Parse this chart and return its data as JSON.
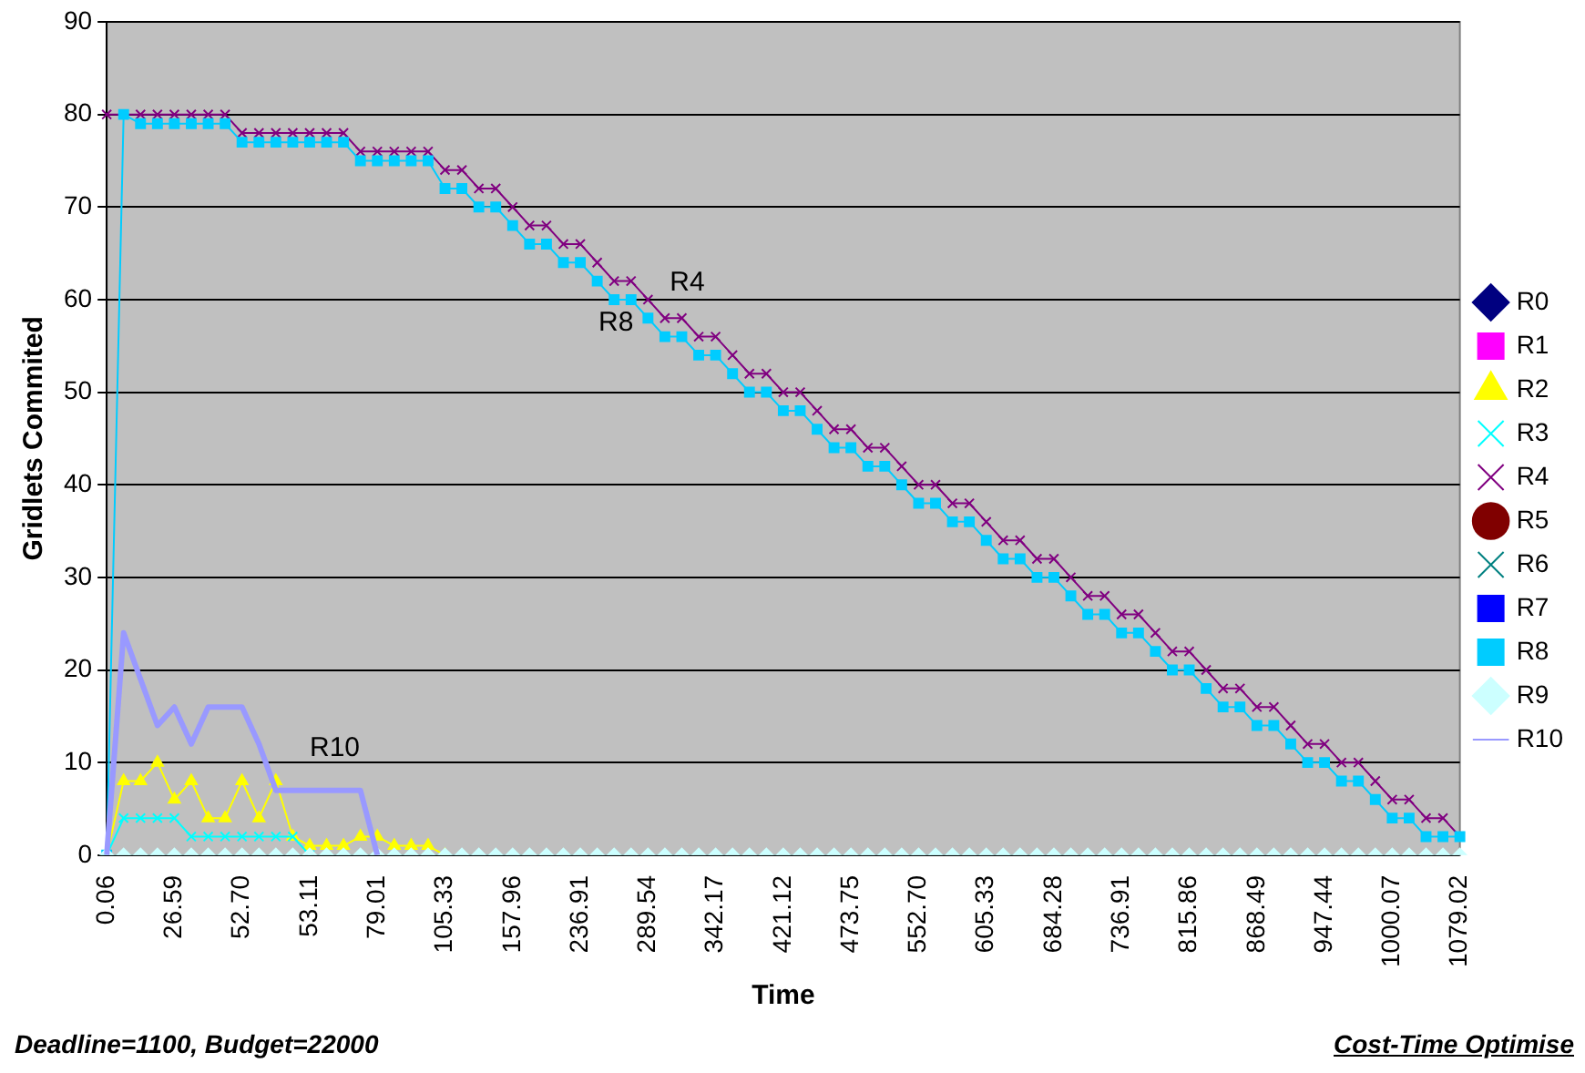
{
  "chart_data": {
    "type": "line",
    "xlabel": "Time",
    "ylabel": "Gridlets Commited",
    "categories": [
      "0.06",
      null,
      null,
      null,
      "26.59",
      null,
      null,
      null,
      "52.70",
      null,
      null,
      null,
      "53.11",
      null,
      null,
      null,
      "79.01",
      null,
      null,
      null,
      "105.33",
      null,
      null,
      null,
      "157.96",
      null,
      null,
      null,
      "236.91",
      null,
      null,
      null,
      "289.54",
      null,
      null,
      null,
      "342.17",
      null,
      null,
      null,
      "421.12",
      null,
      null,
      null,
      "473.75",
      null,
      null,
      null,
      "552.70",
      null,
      null,
      null,
      "605.33",
      null,
      null,
      null,
      "684.28",
      null,
      null,
      null,
      "736.91",
      null,
      null,
      null,
      "815.86",
      null,
      null,
      null,
      "868.49",
      null,
      null,
      null,
      "947.44",
      null,
      null,
      null,
      "1000.07",
      null,
      null,
      null,
      "1079.02"
    ],
    "ylim": [
      0,
      90
    ],
    "yticks": [
      0,
      10,
      20,
      30,
      40,
      50,
      60,
      70,
      80,
      90
    ],
    "grid": "y",
    "legend": "right",
    "annotations": [
      {
        "text": "R4",
        "x": "289.54",
        "y": 60
      },
      {
        "text": "R8",
        "x": "236.91",
        "y": 64
      },
      {
        "text": "R10",
        "x": "53.11",
        "y": 7
      },
      "Deadline=1100, Budget=22000",
      "Cost-Time Optimise"
    ],
    "series": [
      {
        "name": "R0",
        "color": "#000080",
        "marker": "diamond",
        "values": [
          null,
          null,
          null,
          null,
          null,
          null,
          null,
          null,
          null,
          null,
          null,
          null,
          null,
          null,
          null,
          null,
          null,
          null,
          null,
          null,
          null,
          null,
          null,
          null,
          null,
          null,
          null,
          null,
          null,
          null,
          null,
          null,
          null,
          null,
          null,
          null,
          null,
          null,
          null,
          null,
          null,
          null,
          null,
          null,
          null,
          null,
          null,
          null,
          null,
          null,
          null,
          null,
          null,
          null,
          null,
          null,
          null,
          null,
          null,
          null,
          null,
          null,
          null,
          null,
          null,
          null,
          null,
          null,
          null,
          null,
          null,
          null,
          null,
          null,
          null,
          null,
          null,
          null,
          null,
          null,
          null
        ]
      },
      {
        "name": "R1",
        "color": "#ff00ff",
        "marker": "square",
        "values": [
          null,
          null,
          null,
          null,
          null,
          null,
          null,
          null,
          null,
          null,
          null,
          null,
          null,
          null,
          null,
          null,
          null,
          null,
          null,
          null,
          null,
          null,
          null,
          null,
          null,
          null,
          null,
          null,
          null,
          null,
          null,
          null,
          null,
          null,
          null,
          null,
          null,
          null,
          null,
          null,
          null,
          null,
          null,
          null,
          null,
          null,
          null,
          null,
          null,
          null,
          null,
          null,
          null,
          null,
          null,
          null,
          null,
          null,
          null,
          null,
          null,
          null,
          null,
          null,
          null,
          null,
          null,
          null,
          null,
          null,
          null,
          null,
          null,
          null,
          null,
          null,
          null,
          null,
          null,
          null,
          null
        ]
      },
      {
        "name": "R2",
        "color": "#ffff00",
        "marker": "triangle",
        "values": [
          0,
          8,
          8,
          10,
          6,
          8,
          4,
          4,
          8,
          4,
          8,
          2,
          1,
          1,
          1,
          2,
          2,
          1,
          1,
          1,
          0,
          null,
          null,
          null,
          null,
          null,
          null,
          null,
          null,
          null,
          null,
          null,
          null,
          null,
          null,
          null,
          null,
          null,
          null,
          null,
          null,
          null,
          null,
          null,
          null,
          null,
          null,
          null,
          null,
          null,
          null,
          null,
          null,
          null,
          null,
          null,
          null,
          null,
          null,
          null,
          null,
          null,
          null,
          null,
          null,
          null,
          null,
          null,
          null,
          null,
          null,
          null,
          null,
          null,
          null,
          null,
          null,
          null,
          null,
          null,
          null
        ]
      },
      {
        "name": "R3",
        "color": "#00ffff",
        "marker": "cross",
        "values": [
          0,
          4,
          4,
          4,
          4,
          2,
          2,
          2,
          2,
          2,
          2,
          2,
          0,
          null,
          null,
          null,
          null,
          null,
          null,
          null,
          null,
          null,
          null,
          null,
          null,
          null,
          null,
          null,
          null,
          null,
          null,
          null,
          null,
          null,
          null,
          null,
          null,
          null,
          null,
          null,
          null,
          null,
          null,
          null,
          null,
          null,
          null,
          null,
          null,
          null,
          null,
          null,
          null,
          null,
          null,
          null,
          null,
          null,
          null,
          null,
          null,
          null,
          null,
          null,
          null,
          null,
          null,
          null,
          null,
          null,
          null,
          null,
          null,
          null,
          null,
          null,
          null,
          null,
          null,
          null,
          null
        ]
      },
      {
        "name": "R4",
        "color": "#800080",
        "marker": "cross",
        "values": [
          80,
          80,
          80,
          80,
          80,
          80,
          80,
          80,
          78,
          78,
          78,
          78,
          78,
          78,
          78,
          76,
          76,
          76,
          76,
          76,
          74,
          74,
          72,
          72,
          70,
          68,
          68,
          66,
          66,
          64,
          62,
          62,
          60,
          58,
          58,
          56,
          56,
          54,
          52,
          52,
          50,
          50,
          48,
          46,
          46,
          44,
          44,
          42,
          40,
          40,
          38,
          38,
          36,
          34,
          34,
          32,
          32,
          30,
          28,
          28,
          26,
          26,
          24,
          22,
          22,
          20,
          18,
          18,
          16,
          16,
          14,
          12,
          12,
          10,
          10,
          8,
          6,
          6,
          4,
          4,
          2
        ]
      },
      {
        "name": "R5",
        "color": "#800000",
        "marker": "circle",
        "values": [
          null,
          null,
          null,
          null,
          null,
          null,
          null,
          null,
          null,
          null,
          null,
          null,
          null,
          null,
          null,
          null,
          null,
          null,
          null,
          null,
          null,
          null,
          null,
          null,
          null,
          null,
          null,
          null,
          null,
          null,
          null,
          null,
          null,
          null,
          null,
          null,
          null,
          null,
          null,
          null,
          null,
          null,
          null,
          null,
          null,
          null,
          null,
          null,
          null,
          null,
          null,
          null,
          null,
          null,
          null,
          null,
          null,
          null,
          null,
          null,
          null,
          null,
          null,
          null,
          null,
          null,
          null,
          null,
          null,
          null,
          null,
          null,
          null,
          null,
          null,
          null,
          null,
          null,
          null,
          null,
          null
        ]
      },
      {
        "name": "R6",
        "color": "#008080",
        "marker": "cross",
        "values": [
          null,
          null,
          null,
          null,
          null,
          null,
          null,
          null,
          null,
          null,
          null,
          null,
          null,
          null,
          null,
          null,
          null,
          null,
          null,
          null,
          null,
          null,
          null,
          null,
          null,
          null,
          null,
          null,
          null,
          null,
          null,
          null,
          null,
          null,
          null,
          null,
          null,
          null,
          null,
          null,
          null,
          null,
          null,
          null,
          null,
          null,
          null,
          null,
          null,
          null,
          null,
          null,
          null,
          null,
          null,
          null,
          null,
          null,
          null,
          null,
          null,
          null,
          null,
          null,
          null,
          null,
          null,
          null,
          null,
          null,
          null,
          null,
          null,
          null,
          null,
          null,
          null,
          null,
          null,
          null,
          null
        ]
      },
      {
        "name": "R7",
        "color": "#0000ff",
        "marker": "square",
        "values": [
          null,
          null,
          null,
          null,
          null,
          null,
          null,
          null,
          null,
          null,
          null,
          null,
          null,
          null,
          null,
          null,
          null,
          null,
          null,
          null,
          null,
          null,
          null,
          null,
          null,
          null,
          null,
          null,
          null,
          null,
          null,
          null,
          null,
          null,
          null,
          null,
          null,
          null,
          null,
          null,
          null,
          null,
          null,
          null,
          null,
          null,
          null,
          null,
          null,
          null,
          null,
          null,
          null,
          null,
          null,
          null,
          null,
          null,
          null,
          null,
          null,
          null,
          null,
          null,
          null,
          null,
          null,
          null,
          null,
          null,
          null,
          null,
          null,
          null,
          null,
          null,
          null,
          null,
          null,
          null,
          null
        ]
      },
      {
        "name": "R8",
        "color": "#00ccff",
        "marker": "square",
        "values": [
          0,
          80,
          79,
          79,
          79,
          79,
          79,
          79,
          77,
          77,
          77,
          77,
          77,
          77,
          77,
          75,
          75,
          75,
          75,
          75,
          72,
          72,
          70,
          70,
          68,
          66,
          66,
          64,
          64,
          62,
          60,
          60,
          58,
          56,
          56,
          54,
          54,
          52,
          50,
          50,
          48,
          48,
          46,
          44,
          44,
          42,
          42,
          40,
          38,
          38,
          36,
          36,
          34,
          32,
          32,
          30,
          30,
          28,
          26,
          26,
          24,
          24,
          22,
          20,
          20,
          18,
          16,
          16,
          14,
          14,
          12,
          10,
          10,
          8,
          8,
          6,
          4,
          4,
          2,
          2,
          2
        ]
      },
      {
        "name": "R9",
        "color": "#ccffff",
        "marker": "diamond",
        "values": [
          0,
          0,
          0,
          0,
          0,
          0,
          0,
          0,
          0,
          0,
          0,
          0,
          0,
          0,
          0,
          0,
          0,
          0,
          0,
          0,
          0,
          0,
          0,
          0,
          0,
          0,
          0,
          0,
          0,
          0,
          0,
          0,
          0,
          0,
          0,
          0,
          0,
          0,
          0,
          0,
          0,
          0,
          0,
          0,
          0,
          0,
          0,
          0,
          0,
          0,
          0,
          0,
          0,
          0,
          0,
          0,
          0,
          0,
          0,
          0,
          0,
          0,
          0,
          0,
          0,
          0,
          0,
          0,
          0,
          0,
          0,
          0,
          0,
          0,
          0,
          0,
          0,
          0,
          0,
          0,
          0
        ]
      },
      {
        "name": "R10",
        "color": "#9999ff",
        "marker": "none",
        "values": [
          0,
          24,
          19,
          14,
          16,
          12,
          16,
          16,
          16,
          12,
          7,
          7,
          7,
          7,
          7,
          7,
          0,
          null,
          null,
          null,
          null,
          null,
          null,
          null,
          null,
          null,
          null,
          null,
          null,
          null,
          null,
          null,
          null,
          null,
          null,
          null,
          null,
          null,
          null,
          null,
          null,
          null,
          null,
          null,
          null,
          null,
          null,
          null,
          null,
          null,
          null,
          null,
          null,
          null,
          null,
          null,
          null,
          null,
          null,
          null,
          null,
          null,
          null,
          null,
          null,
          null,
          null,
          null,
          null,
          null,
          null,
          null,
          null,
          null,
          null,
          null,
          null,
          null,
          null,
          null,
          null
        ]
      }
    ]
  }
}
